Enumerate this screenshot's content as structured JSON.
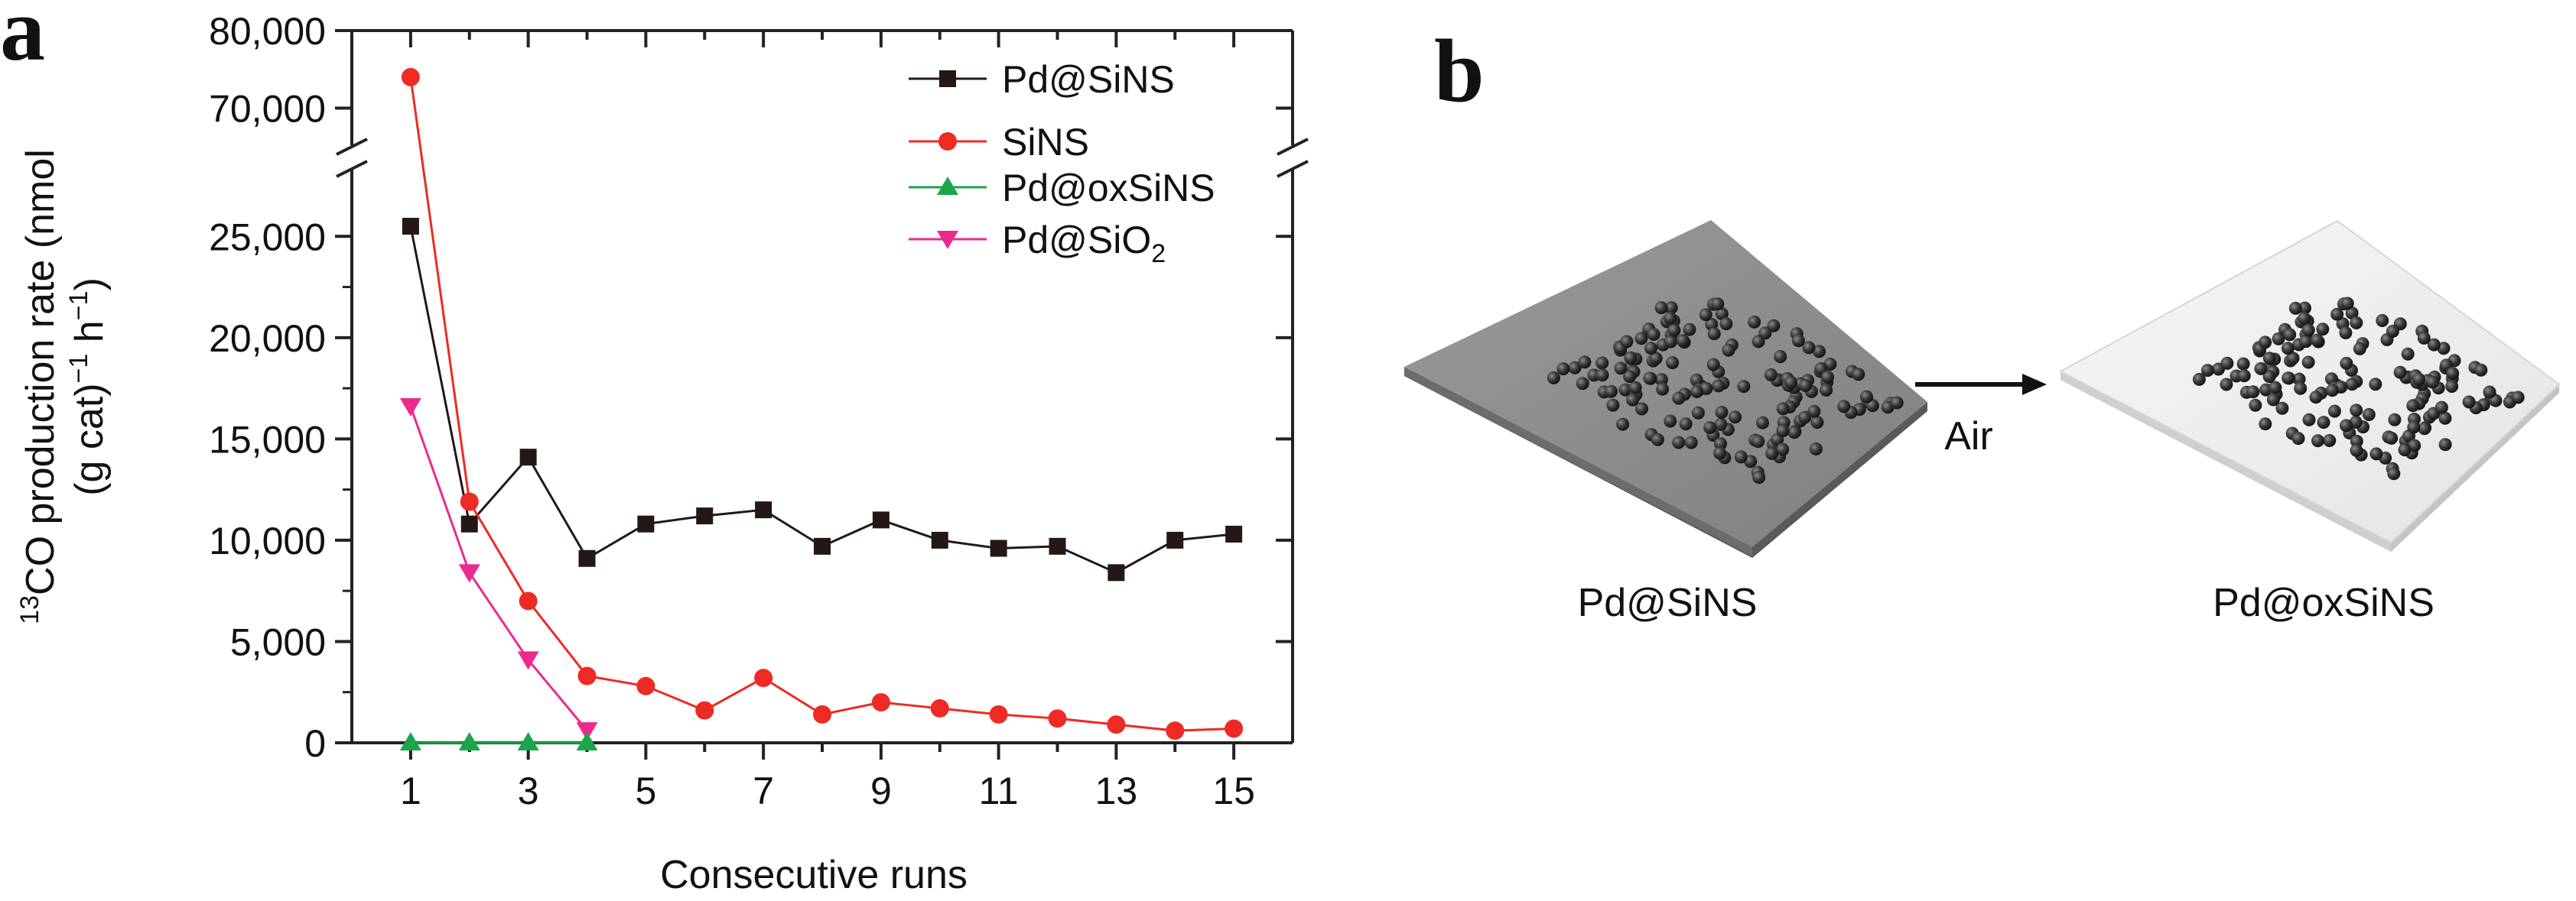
{
  "panel_a": {
    "letter": "a"
  },
  "panel_b": {
    "letter": "b",
    "left_label": "Pd@SiNS",
    "right_label": "Pd@oxSiNS",
    "arrow_label": "Air",
    "colors": {
      "left_sheet": "#8f8f8f",
      "right_sheet": "#f2f2f2",
      "particles": "#3a3a3a"
    }
  },
  "chart_data": {
    "type": "line",
    "xlabel": "Consecutive runs",
    "ylabel_line1": "13CO production rate (nmol",
    "ylabel_line2": "(g cat)−1 h−1)",
    "ylabel_parts": {
      "sup_13": "13",
      "line1_rest": "CO production rate (nmol",
      "line2_a": "(g cat)",
      "sup_minus1_a": "−1",
      "line2_b": " h",
      "sup_minus1_b": "−1",
      "line2_c": ")"
    },
    "x_ticks": [
      1,
      3,
      5,
      7,
      9,
      11,
      13,
      15
    ],
    "xlim": [
      0,
      16
    ],
    "y_axis_broken": true,
    "y_lower_segment": {
      "ylim": [
        0,
        27500
      ],
      "ticks": [
        0,
        5000,
        10000,
        15000,
        20000,
        25000
      ],
      "tick_labels": [
        "0",
        "5,000",
        "10,000",
        "15,000",
        "20,000",
        "25,000"
      ]
    },
    "y_upper_segment": {
      "ylim": [
        67000,
        80000
      ],
      "ticks": [
        70000,
        80000
      ],
      "tick_labels": [
        "70,000",
        "80,000"
      ]
    },
    "legend_position": "top-right",
    "series": [
      {
        "name": "Pd@SiNS",
        "color": "#231815",
        "marker": "square",
        "x": [
          1,
          2,
          3,
          4,
          5,
          6,
          7,
          8,
          9,
          10,
          11,
          12,
          13,
          14,
          15
        ],
        "values": [
          25500,
          10800,
          14100,
          9100,
          10800,
          11200,
          11500,
          9700,
          11000,
          10000,
          9600,
          9700,
          8400,
          10000,
          10300
        ]
      },
      {
        "name": "SiNS",
        "color": "#ee2a24",
        "marker": "circle",
        "x": [
          1,
          2,
          3,
          4,
          5,
          6,
          7,
          8,
          9,
          10,
          11,
          12,
          13,
          14,
          15
        ],
        "values": [
          74000,
          11900,
          7000,
          3300,
          2800,
          1600,
          3200,
          1400,
          2000,
          1700,
          1400,
          1200,
          900,
          600,
          700
        ]
      },
      {
        "name": "Pd@oxSiNS",
        "color": "#1aa64a",
        "marker": "triangle-up",
        "x": [
          1,
          2,
          3,
          4
        ],
        "values": [
          0,
          0,
          0,
          0
        ]
      },
      {
        "name": "Pd@SiO2",
        "name_base": "Pd@SiO",
        "name_sub": "2",
        "color": "#ec2a8e",
        "marker": "triangle-down",
        "x": [
          1,
          2,
          3,
          4
        ],
        "values": [
          16600,
          8400,
          4100,
          600
        ]
      }
    ]
  }
}
